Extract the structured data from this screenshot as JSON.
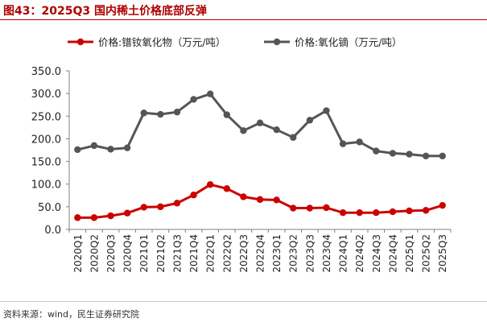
{
  "figure": {
    "title": "图43：2025Q3 国内稀土价格底部反弹",
    "source": "资料来源：wind，民生证券研究院"
  },
  "chart_data": {
    "type": "line",
    "title": "图43：2025Q3 国内稀土价格底部反弹",
    "xlabel": "",
    "ylabel": "",
    "ylim": [
      0,
      350
    ],
    "yticks": [
      0,
      50,
      100,
      150,
      200,
      250,
      300,
      350
    ],
    "ytick_labels": [
      "0.0",
      "50.0",
      "100.0",
      "150.0",
      "200.0",
      "250.0",
      "300.0",
      "350.0"
    ],
    "categories": [
      "2020Q1",
      "2020Q2",
      "2020Q3",
      "2020Q4",
      "2021Q1",
      "2021Q2",
      "2021Q3",
      "2021Q4",
      "2022Q1",
      "2022Q2",
      "2022Q3",
      "2022Q4",
      "2023Q1",
      "2023Q2",
      "2023Q3",
      "2023Q4",
      "2024Q1",
      "2024Q2",
      "2024Q3",
      "2024Q4",
      "2025Q1",
      "2025Q2",
      "2025Q3"
    ],
    "legend_position": "top",
    "grid": false,
    "series": [
      {
        "name": "价格:镨钕氧化物（万元/吨）",
        "color": "#cc0000",
        "values": [
          26,
          26,
          30,
          36,
          49,
          50,
          58,
          76,
          99,
          90,
          72,
          66,
          65,
          47,
          47,
          48,
          37,
          37,
          37,
          39,
          41,
          42,
          53
        ]
      },
      {
        "name": "价格:氧化镝（万元/吨）",
        "color": "#555555",
        "values": [
          176,
          185,
          177,
          180,
          257,
          254,
          259,
          287,
          299,
          253,
          218,
          235,
          220,
          203,
          241,
          262,
          189,
          193,
          173,
          168,
          166,
          162,
          162
        ]
      }
    ]
  }
}
